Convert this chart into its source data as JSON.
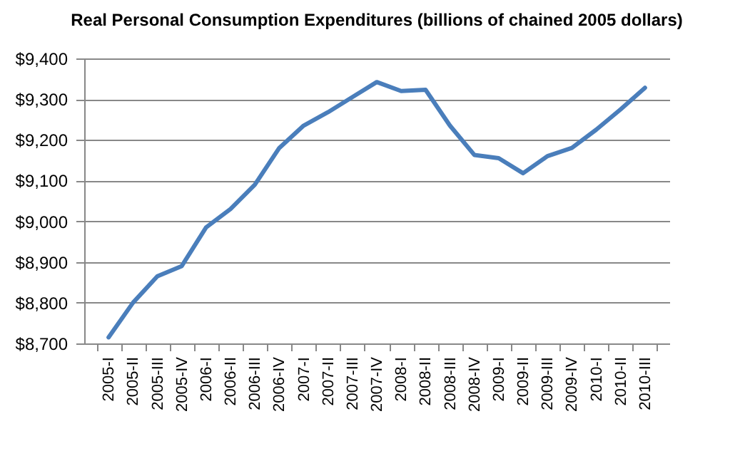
{
  "chart_data": {
    "type": "line",
    "title": "Real Personal Consumption Expenditures (billions of chained 2005 dollars)",
    "categories": [
      "2005-I",
      "2005-II",
      "2005-III",
      "2005-IV",
      "2006-I",
      "2006-II",
      "2006-III",
      "2006-IV",
      "2007-I",
      "2007-II",
      "2007-III",
      "2007-IV",
      "2008-I",
      "2008-II",
      "2008-III",
      "2008-IV",
      "2009-I",
      "2009-II",
      "2009-III",
      "2009-IV",
      "2010-I",
      "2010-II",
      "2010-III"
    ],
    "series": [
      {
        "color": "#4a7ebb",
        "values": [
          8715,
          8800,
          8865,
          8890,
          8985,
          9030,
          9090,
          9180,
          9235,
          9268,
          9305,
          9342,
          9320,
          9323,
          9235,
          9163,
          9155,
          9118,
          9160,
          9180,
          9225,
          9275,
          9328
        ]
      }
    ],
    "ylim": [
      8700,
      9400
    ],
    "yticks": [
      {
        "value": 8700,
        "label": "$8,700"
      },
      {
        "value": 8800,
        "label": "$8,800"
      },
      {
        "value": 8900,
        "label": "$8,900"
      },
      {
        "value": 9000,
        "label": "$9,000"
      },
      {
        "value": 9100,
        "label": "$9,100"
      },
      {
        "value": 9200,
        "label": "$9,200"
      },
      {
        "value": 9300,
        "label": "$9,300"
      },
      {
        "value": 9400,
        "label": "$9,400"
      }
    ],
    "grid": "y",
    "marker": "none",
    "line_style": "solid"
  }
}
